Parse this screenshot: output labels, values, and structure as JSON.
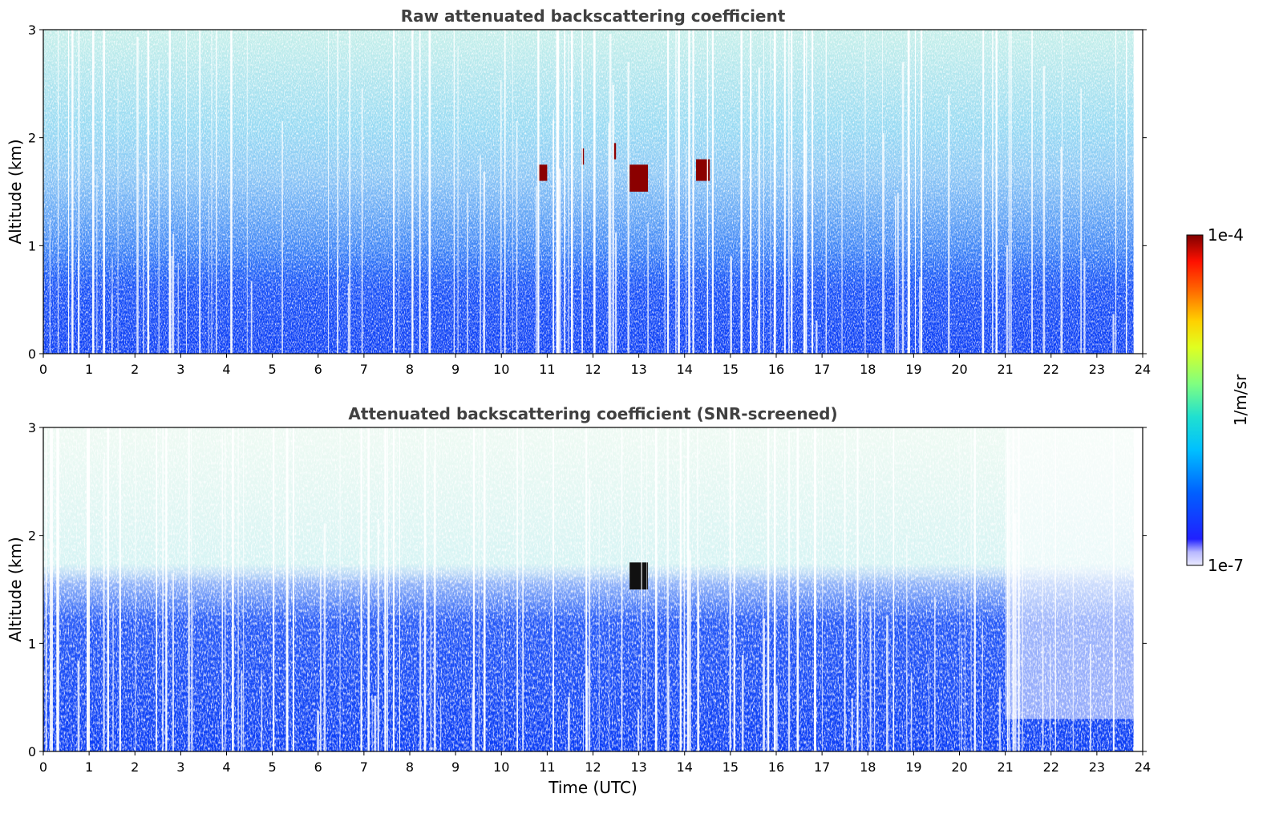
{
  "chart_data": [
    {
      "type": "heatmap",
      "title": "Raw attenuated backscattering coefficient",
      "xlabel": "",
      "ylabel": "Altitude (km)",
      "xlim": [
        0,
        24
      ],
      "ylim": [
        0,
        3
      ],
      "x_ticks": [
        "0",
        "1",
        "2",
        "3",
        "4",
        "5",
        "6",
        "7",
        "8",
        "9",
        "10",
        "11",
        "12",
        "13",
        "14",
        "15",
        "16",
        "17",
        "18",
        "19",
        "20",
        "21",
        "22",
        "23",
        "24"
      ],
      "y_ticks": [
        "0",
        "1",
        "2",
        "3"
      ],
      "grid": false,
      "features": [
        {
          "region": "boundary layer",
          "x_range": [
            0,
            23.8
          ],
          "y_range": [
            0,
            0.6
          ],
          "level": "~5e-7 (blue)"
        },
        {
          "region": "upper noise",
          "x_range": [
            0,
            23.8
          ],
          "y_range": [
            1.5,
            3.0
          ],
          "level": "~3e-6 (cyan/green), sparse"
        },
        {
          "region": "cloud",
          "x_range": [
            12.8,
            13.2
          ],
          "y_range": [
            1.5,
            1.75
          ],
          "level": "~1e-4 (dark red)"
        },
        {
          "region": "cloud",
          "x_range": [
            10.8,
            11.0
          ],
          "y_range": [
            1.6,
            1.75
          ],
          "level": "~1e-4 (dark red)"
        },
        {
          "region": "cloud",
          "x_range": [
            11.75,
            11.8
          ],
          "y_range": [
            1.75,
            1.9
          ],
          "level": "~1e-4 (dark red)"
        },
        {
          "region": "cloud",
          "x_range": [
            12.45,
            12.5
          ],
          "y_range": [
            1.8,
            1.95
          ],
          "level": "~1e-4 (dark red)"
        },
        {
          "region": "cloud",
          "x_range": [
            14.25,
            14.55
          ],
          "y_range": [
            1.6,
            1.8
          ],
          "level": "~1e-4 (dark red)"
        }
      ]
    },
    {
      "type": "heatmap",
      "title": "Attenuated backscattering coefficient (SNR-screened)",
      "xlabel": "Time (UTC)",
      "ylabel": "Altitude (km)",
      "xlim": [
        0,
        24
      ],
      "ylim": [
        0,
        3
      ],
      "x_ticks": [
        "0",
        "1",
        "2",
        "3",
        "4",
        "5",
        "6",
        "7",
        "8",
        "9",
        "10",
        "11",
        "12",
        "13",
        "14",
        "15",
        "16",
        "17",
        "18",
        "19",
        "20",
        "21",
        "22",
        "23",
        "24"
      ],
      "y_ticks": [
        "0",
        "1",
        "2",
        "3"
      ],
      "grid": false,
      "features": [
        {
          "region": "boundary layer",
          "x_range": [
            0,
            23.8
          ],
          "y_range": [
            0,
            1.3
          ],
          "level": "~5e-7 (blue)"
        },
        {
          "region": "screened upper",
          "x_range": [
            0,
            23.8
          ],
          "y_range": [
            1.7,
            3.0
          ],
          "level": "~3e-6 (cyan/green), sparse"
        },
        {
          "region": "cloud",
          "x_range": [
            12.8,
            13.2
          ],
          "y_range": [
            1.5,
            1.75
          ],
          "level": "~1e-4 (black)"
        },
        {
          "region": "low layer late day",
          "x_range": [
            21.0,
            23.8
          ],
          "y_range": [
            0,
            0.3
          ],
          "level": "~5e-7 (blue)"
        }
      ]
    }
  ],
  "colorbar": {
    "label": "1/m/sr",
    "max_label": "1e-4",
    "min_label": "1e-7",
    "colormap": "jet",
    "scale": "log",
    "range": [
      1e-07,
      0.0001
    ]
  },
  "colors": {
    "title": "#404040",
    "boundary_layer": "#0a3cf5",
    "noise": "#2fd0e0",
    "cloud": "#8b0000"
  }
}
